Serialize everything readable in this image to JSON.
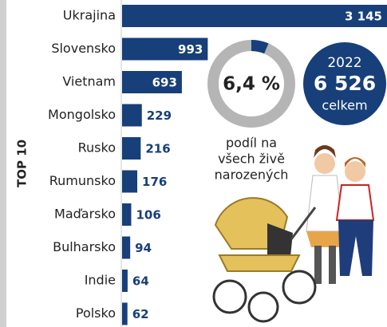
{
  "chart_data": [
    {
      "type": "hbar",
      "title": "TOP 10",
      "color": "#173f7a",
      "categories": [
        "Ukrajina",
        "Slovensko",
        "Vietnam",
        "Mongolsko",
        "Rusko",
        "Rumunsko",
        "Maďarsko",
        "Bulharsko",
        "Indie",
        "Polsko"
      ],
      "values": [
        3145,
        993,
        693,
        229,
        216,
        176,
        106,
        94,
        64,
        62
      ],
      "value_labels": [
        "3 145",
        "993",
        "693",
        "229",
        "216",
        "176",
        "106",
        "94",
        "64",
        "62"
      ]
    },
    {
      "type": "donut",
      "values": [
        6.4
      ],
      "value_labels": [
        "6,4 %"
      ],
      "ylim": [
        0,
        100
      ],
      "color": "#173f7a",
      "track_color": "#b5b5b5",
      "caption": [
        "podíl na",
        "všech živě",
        "narozených"
      ]
    }
  ],
  "total": {
    "year": "2022",
    "value": 6526,
    "value_label": "6 526",
    "label": "celkem"
  }
}
